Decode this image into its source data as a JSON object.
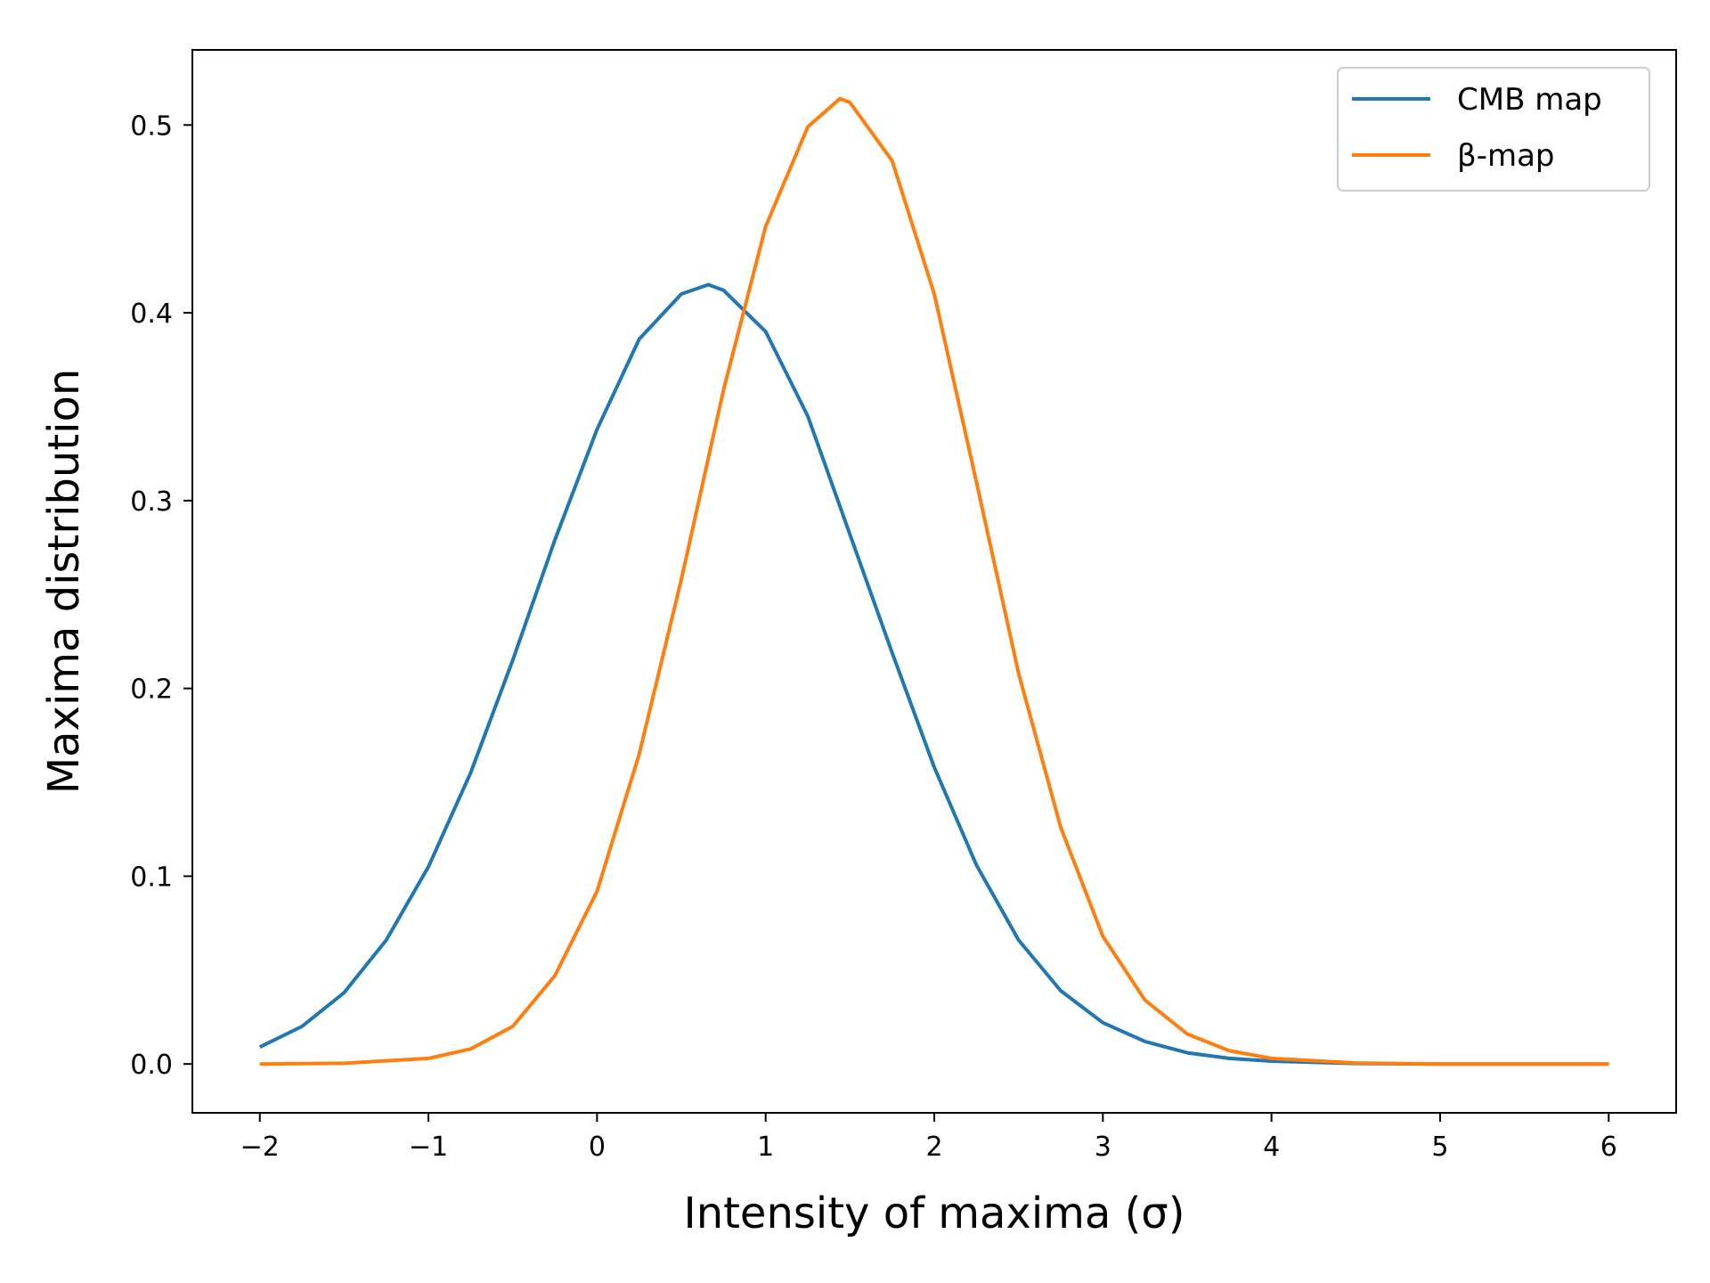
{
  "chart_data": {
    "type": "line",
    "xlabel": "Intensity of maxima (σ)",
    "ylabel": "Maxima distribution",
    "xlim": [
      -2.4,
      6.4
    ],
    "ylim": [
      -0.026,
      0.54
    ],
    "xticks": [
      -2,
      -1,
      0,
      1,
      2,
      3,
      4,
      5,
      6
    ],
    "xtick_labels": [
      "−2",
      "−1",
      "0",
      "1",
      "2",
      "3",
      "4",
      "5",
      "6"
    ],
    "yticks": [
      0.0,
      0.1,
      0.2,
      0.3,
      0.4,
      0.5
    ],
    "ytick_labels": [
      "0.0",
      "0.1",
      "0.2",
      "0.3",
      "0.4",
      "0.5"
    ],
    "grid": false,
    "legend_position": "top-right",
    "series": [
      {
        "name": "CMB map",
        "color": "#1f77b4",
        "x": [
          -2.0,
          -1.75,
          -1.5,
          -1.25,
          -1.0,
          -0.75,
          -0.5,
          -0.25,
          0.0,
          0.25,
          0.5,
          0.66,
          0.75,
          1.0,
          1.25,
          1.5,
          1.75,
          2.0,
          2.25,
          2.5,
          2.75,
          3.0,
          3.25,
          3.5,
          3.75,
          4.0,
          4.5,
          5.0,
          5.5,
          6.0
        ],
        "y": [
          0.009,
          0.02,
          0.038,
          0.066,
          0.105,
          0.155,
          0.215,
          0.279,
          0.338,
          0.386,
          0.41,
          0.415,
          0.412,
          0.39,
          0.345,
          0.282,
          0.219,
          0.158,
          0.106,
          0.066,
          0.039,
          0.022,
          0.012,
          0.006,
          0.003,
          0.0015,
          0.0003,
          0.0,
          0.0,
          0.0
        ]
      },
      {
        "name": "β-map",
        "color": "#ff7f0e",
        "x": [
          -2.0,
          -1.5,
          -1.0,
          -0.75,
          -0.5,
          -0.25,
          0.0,
          0.25,
          0.5,
          0.75,
          1.0,
          1.25,
          1.44,
          1.5,
          1.75,
          2.0,
          2.25,
          2.5,
          2.75,
          3.0,
          3.25,
          3.5,
          3.75,
          4.0,
          4.5,
          5.0,
          5.5,
          6.0
        ],
        "y": [
          0.0,
          0.0004,
          0.003,
          0.008,
          0.02,
          0.047,
          0.092,
          0.165,
          0.258,
          0.359,
          0.446,
          0.499,
          0.514,
          0.512,
          0.481,
          0.41,
          0.31,
          0.208,
          0.126,
          0.068,
          0.034,
          0.016,
          0.007,
          0.003,
          0.0005,
          0.0,
          0.0,
          0.0
        ]
      }
    ]
  }
}
